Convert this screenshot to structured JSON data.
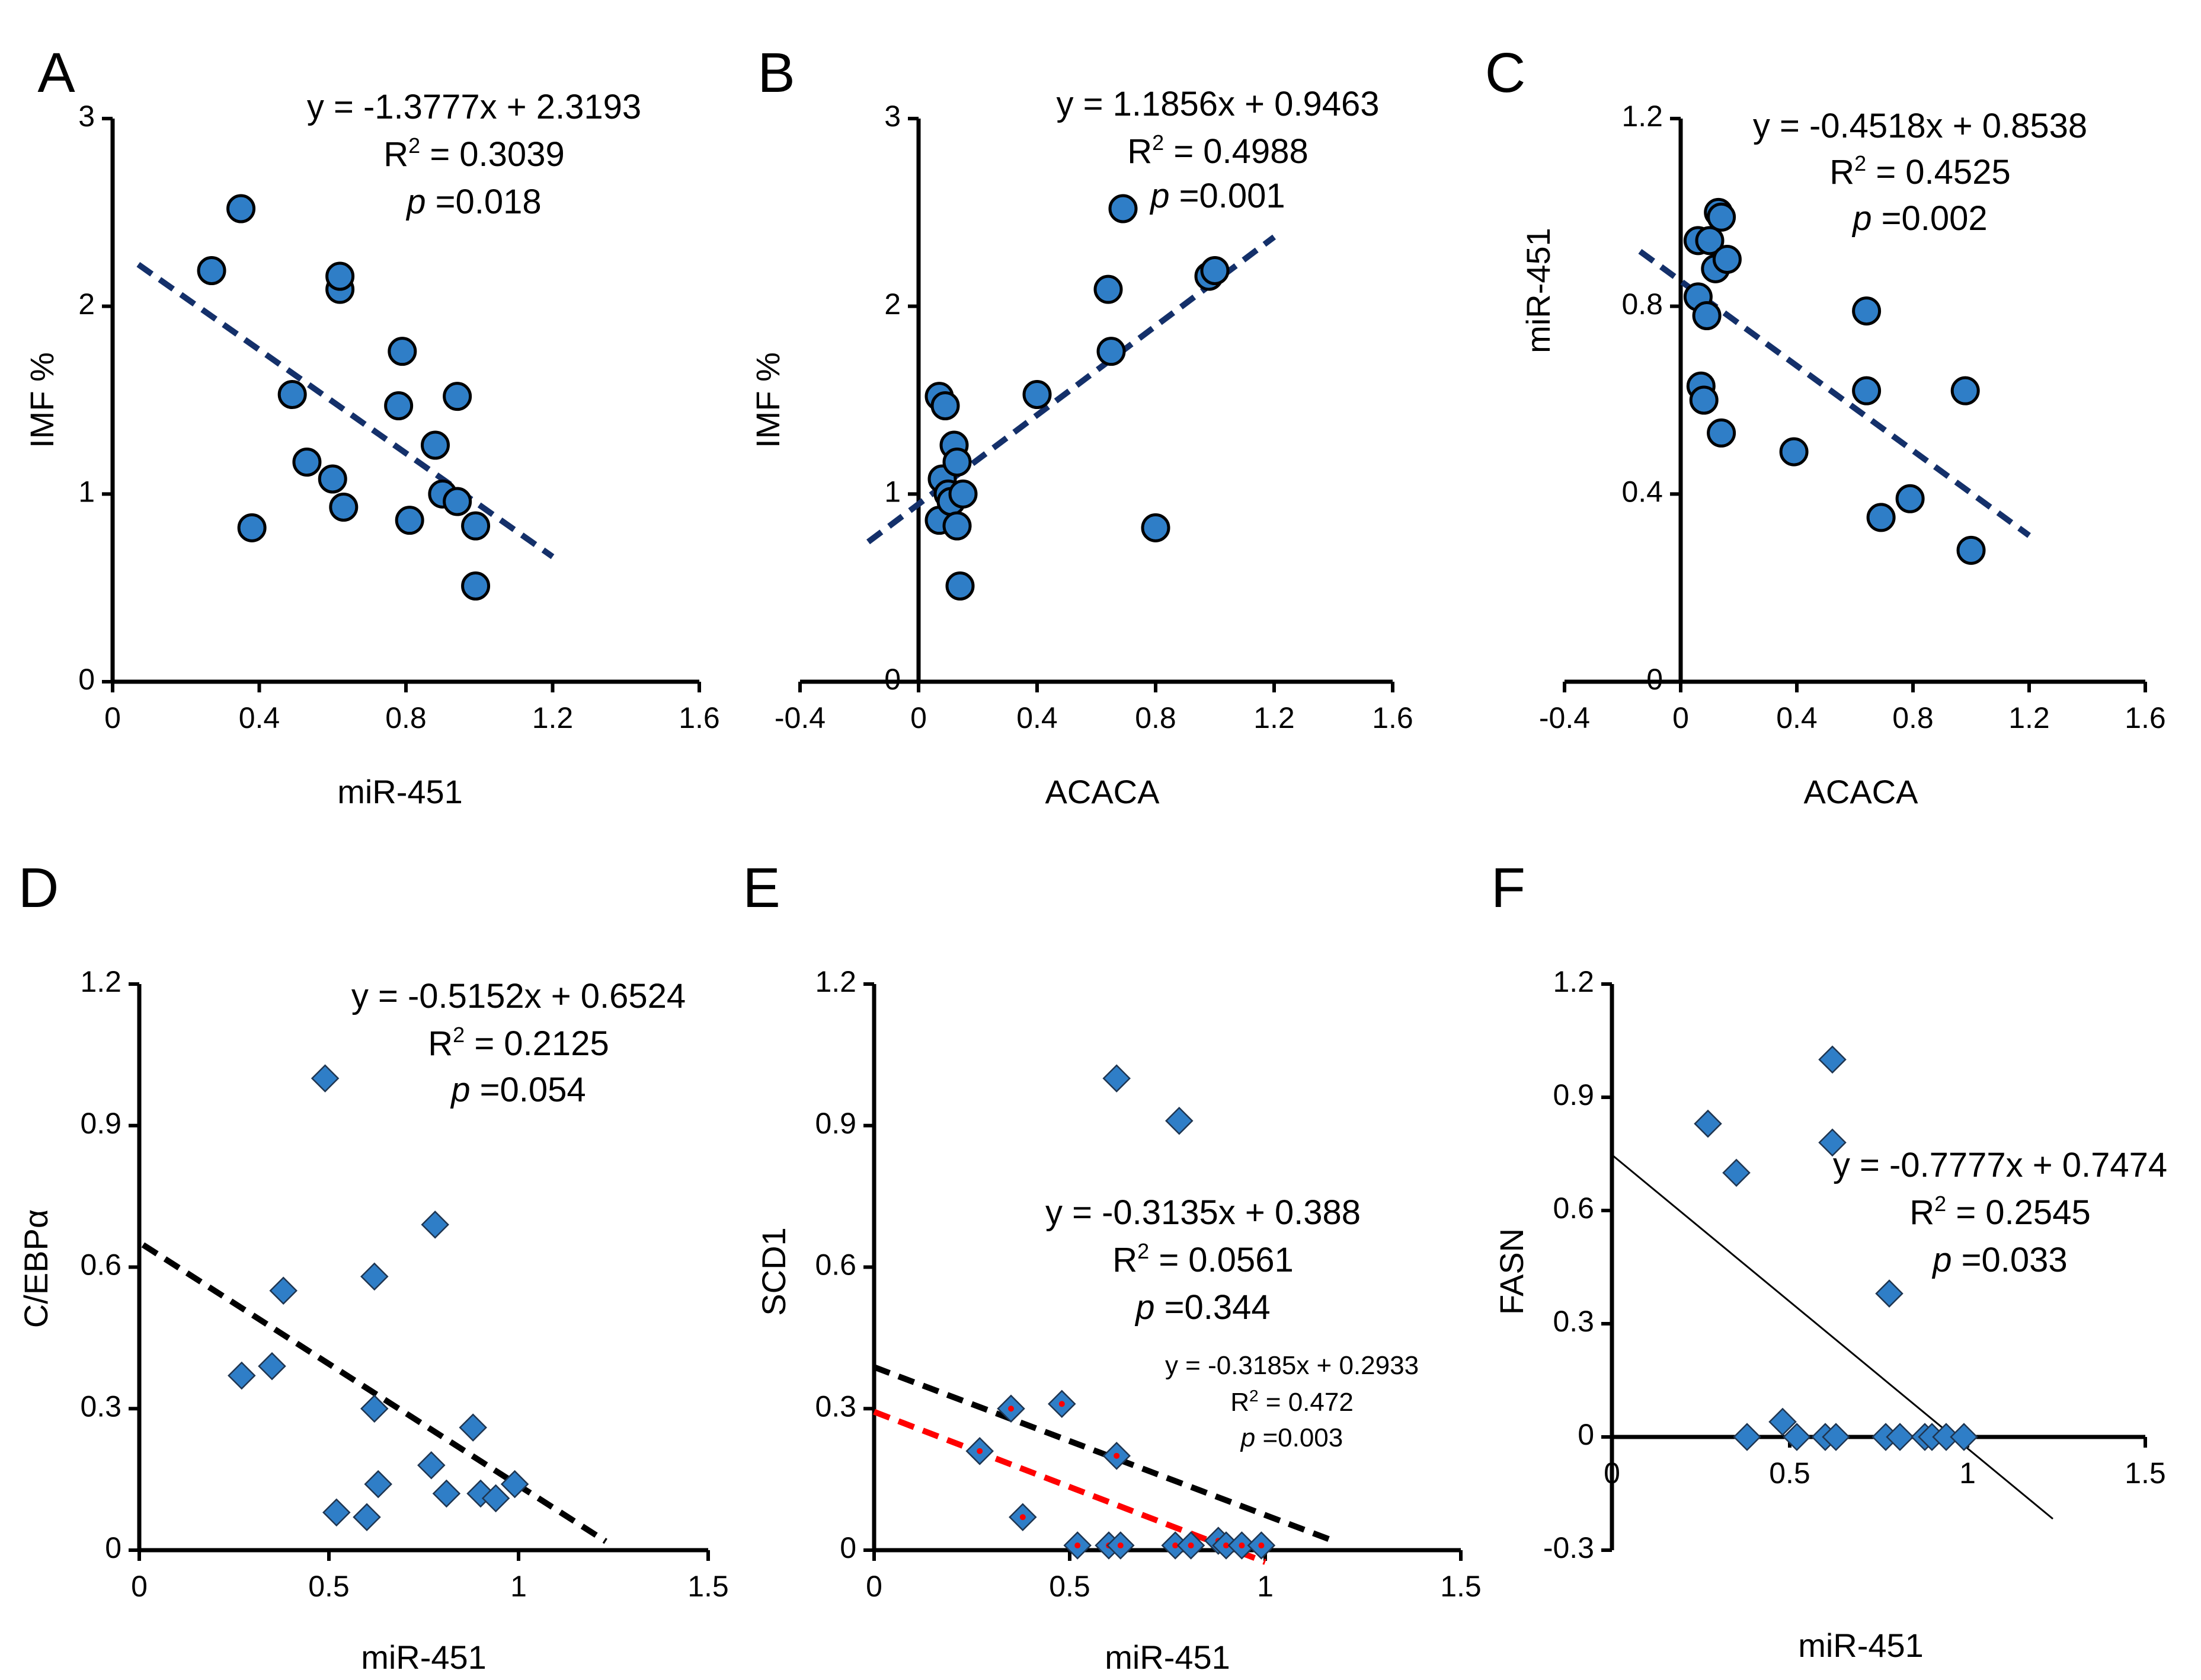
{
  "colors": {
    "marker_fill": "#2f7ec7",
    "marker_stroke": "#000000",
    "trend_navy": "#14306a",
    "trend_black": "#000000",
    "trend_red": "#ff0000",
    "point_red": "#ff0000"
  },
  "chart_data": [
    {
      "id": "A",
      "panel_label": "A",
      "type": "scatter",
      "marker": "circle",
      "xlabel": "miR-451",
      "ylabel": "IMF %",
      "xlim": [
        0,
        1.6
      ],
      "ylim": [
        0,
        3
      ],
      "xticks": [
        0,
        0.4,
        0.8,
        1.2,
        1.6
      ],
      "xtick_labels": [
        "0",
        "0.4",
        "0.8",
        "1.2",
        "1.6"
      ],
      "yticks": [
        0,
        1,
        2,
        3
      ],
      "ytick_labels": [
        "0",
        "1",
        "2",
        "3"
      ],
      "points": [
        [
          0.27,
          2.19
        ],
        [
          0.35,
          2.52
        ],
        [
          0.38,
          0.82
        ],
        [
          0.49,
          1.53
        ],
        [
          0.53,
          1.17
        ],
        [
          0.6,
          1.08
        ],
        [
          0.62,
          2.09
        ],
        [
          0.62,
          2.16
        ],
        [
          0.63,
          0.93
        ],
        [
          0.78,
          1.47
        ],
        [
          0.79,
          1.76
        ],
        [
          0.81,
          0.86
        ],
        [
          0.88,
          1.26
        ],
        [
          0.9,
          1.0
        ],
        [
          0.94,
          0.96
        ],
        [
          0.94,
          1.52
        ],
        [
          0.99,
          0.83
        ],
        [
          0.99,
          0.51
        ]
      ],
      "trendlines": [
        {
          "slope": -1.3777,
          "intercept": 2.3193,
          "x_range": [
            0.07,
            1.2
          ],
          "color": "#14306a",
          "style": "dashed",
          "equation": "y = -1.3777x + 2.3193",
          "r2_prefix": "R",
          "r2_sup": "2",
          "r2_rest": " = 0.3039",
          "p_label": "p",
          "p_value": " =0.018"
        }
      ]
    },
    {
      "id": "B",
      "panel_label": "B",
      "type": "scatter",
      "marker": "circle",
      "xlabel": "ACACA",
      "ylabel": "IMF %",
      "xlim": [
        -0.4,
        1.6
      ],
      "ylim": [
        0,
        3
      ],
      "xticks": [
        -0.4,
        0,
        0.4,
        0.8,
        1.2,
        1.6
      ],
      "xtick_labels": [
        "-0.4",
        "0",
        "0.4",
        "0.8",
        "1.2",
        "1.6"
      ],
      "yticks": [
        0,
        1,
        2,
        3
      ],
      "ytick_labels": [
        "0",
        "1",
        "2",
        "3"
      ],
      "points": [
        [
          0.07,
          1.52
        ],
        [
          0.09,
          1.47
        ],
        [
          0.08,
          1.08
        ],
        [
          0.07,
          0.86
        ],
        [
          0.1,
          1.0
        ],
        [
          0.11,
          0.96
        ],
        [
          0.12,
          1.26
        ],
        [
          0.13,
          0.83
        ],
        [
          0.13,
          1.17
        ],
        [
          0.14,
          0.51
        ],
        [
          0.15,
          1.0
        ],
        [
          0.4,
          1.53
        ],
        [
          0.64,
          2.09
        ],
        [
          0.65,
          1.76
        ],
        [
          0.69,
          2.52
        ],
        [
          0.8,
          0.82
        ],
        [
          0.98,
          2.16
        ],
        [
          1.0,
          2.19
        ]
      ],
      "trendlines": [
        {
          "slope": 1.1856,
          "intercept": 0.9463,
          "x_range": [
            -0.17,
            1.2
          ],
          "color": "#14306a",
          "style": "dashed",
          "equation": "y = 1.1856x + 0.9463",
          "r2_prefix": "R",
          "r2_sup": "2",
          "r2_rest": " = 0.4988",
          "p_label": "p",
          "p_value": " =0.001"
        }
      ]
    },
    {
      "id": "C",
      "panel_label": "C",
      "type": "scatter",
      "marker": "circle",
      "xlabel": "ACACA",
      "ylabel": "miR-451",
      "xlim": [
        -0.4,
        1.6
      ],
      "ylim": [
        0,
        1.2
      ],
      "xticks": [
        -0.4,
        0,
        0.4,
        0.8,
        1.2,
        1.6
      ],
      "xtick_labels": [
        "-0.4",
        "0",
        "0.4",
        "0.8",
        "1.2",
        "1.6"
      ],
      "yticks": [
        0,
        0.4,
        0.8,
        1.2
      ],
      "ytick_labels": [
        "0",
        "0.4",
        "0.8",
        "1.2"
      ],
      "points": [
        [
          0.06,
          0.94
        ],
        [
          0.06,
          0.82
        ],
        [
          0.07,
          0.63
        ],
        [
          0.08,
          0.6
        ],
        [
          0.09,
          0.78
        ],
        [
          0.1,
          0.94
        ],
        [
          0.12,
          0.88
        ],
        [
          0.13,
          1.0
        ],
        [
          0.14,
          0.99
        ],
        [
          0.14,
          0.53
        ],
        [
          0.16,
          0.9
        ],
        [
          0.39,
          0.49
        ],
        [
          0.64,
          0.79
        ],
        [
          0.64,
          0.62
        ],
        [
          0.69,
          0.35
        ],
        [
          0.79,
          0.39
        ],
        [
          0.98,
          0.62
        ],
        [
          1.0,
          0.28
        ]
      ],
      "trendlines": [
        {
          "slope": -0.4518,
          "intercept": 0.8538,
          "x_range": [
            -0.14,
            1.2
          ],
          "color": "#14306a",
          "style": "dashed",
          "equation": "y = -0.4518x + 0.8538",
          "r2_prefix": "R",
          "r2_sup": "2",
          "r2_rest": " = 0.4525",
          "p_label": "p",
          "p_value": " =0.002"
        }
      ]
    },
    {
      "id": "D",
      "panel_label": "D",
      "type": "scatter",
      "marker": "diamond",
      "xlabel": "miR-451",
      "ylabel": "C/EBPα",
      "xlim": [
        0,
        1.5
      ],
      "ylim": [
        0,
        1.2
      ],
      "xticks": [
        0,
        0.5,
        1,
        1.5
      ],
      "xtick_labels": [
        "0",
        "0.5",
        "1",
        "1.5"
      ],
      "yticks": [
        0,
        0.3,
        0.6,
        0.9,
        1.2
      ],
      "ytick_labels": [
        "0",
        "0.3",
        "0.6",
        "0.9",
        "1.2"
      ],
      "points": [
        [
          0.27,
          0.37
        ],
        [
          0.35,
          0.39
        ],
        [
          0.38,
          0.55
        ],
        [
          0.49,
          1.0
        ],
        [
          0.52,
          0.08
        ],
        [
          0.6,
          0.07
        ],
        [
          0.62,
          0.58
        ],
        [
          0.62,
          0.3
        ],
        [
          0.63,
          0.14
        ],
        [
          0.77,
          0.18
        ],
        [
          0.78,
          0.69
        ],
        [
          0.81,
          0.12
        ],
        [
          0.88,
          0.26
        ],
        [
          0.9,
          0.12
        ],
        [
          0.94,
          0.11
        ],
        [
          0.99,
          0.14
        ]
      ],
      "trendlines": [
        {
          "slope": -0.5152,
          "intercept": 0.6524,
          "x_range": [
            0.01,
            1.23
          ],
          "color": "#000000",
          "style": "dashed",
          "equation": "y = -0.5152x + 0.6524",
          "r2_prefix": "R",
          "r2_sup": "2",
          "r2_rest": " = 0.2125",
          "p_label": "p",
          "p_value": " =0.054"
        }
      ]
    },
    {
      "id": "E",
      "panel_label": "E",
      "type": "scatter",
      "marker": "diamond",
      "xlabel": "miR-451",
      "ylabel": "SCD1",
      "xlim": [
        0,
        1.5
      ],
      "ylim": [
        0,
        1.2
      ],
      "xticks": [
        0,
        0.5,
        1,
        1.5
      ],
      "xtick_labels": [
        "0",
        "0.5",
        "1",
        "1.5"
      ],
      "yticks": [
        0,
        0.3,
        0.6,
        0.9,
        1.2
      ],
      "ytick_labels": [
        "0",
        "0.3",
        "0.6",
        "0.9",
        "1.2"
      ],
      "points": [
        [
          0.62,
          1.0
        ],
        [
          0.78,
          0.91
        ],
        [
          0.27,
          0.21
        ],
        [
          0.35,
          0.3
        ],
        [
          0.38,
          0.07
        ],
        [
          0.48,
          0.31
        ],
        [
          0.52,
          0.01
        ],
        [
          0.6,
          0.01
        ],
        [
          0.62,
          0.2
        ],
        [
          0.63,
          0.01
        ],
        [
          0.77,
          0.01
        ],
        [
          0.81,
          0.01
        ],
        [
          0.88,
          0.02
        ],
        [
          0.9,
          0.01
        ],
        [
          0.94,
          0.01
        ],
        [
          0.99,
          0.01
        ]
      ],
      "red_dot_indices": [
        2,
        3,
        4,
        5,
        6,
        7,
        8,
        9,
        10,
        11,
        12,
        13,
        14,
        15
      ],
      "trendlines": [
        {
          "slope": -0.3135,
          "intercept": 0.388,
          "x_range": [
            0.0,
            1.17
          ],
          "color": "#000000",
          "style": "dashed",
          "equation": "y = -0.3135x + 0.388",
          "r2_prefix": "R",
          "r2_sup": "2",
          "r2_rest": " = 0.0561",
          "p_label": "p",
          "p_value": " =0.344"
        },
        {
          "slope": -0.3185,
          "intercept": 0.2933,
          "x_range": [
            0.0,
            1.0
          ],
          "color": "#ff0000",
          "style": "dashed",
          "equation": "y = -0.3185x + 0.2933",
          "r2_prefix": "R",
          "r2_sup": "2",
          "r2_rest": " = 0.472",
          "p_label": "p",
          "p_value": " =0.003"
        }
      ]
    },
    {
      "id": "F",
      "panel_label": "F",
      "type": "scatter",
      "marker": "diamond",
      "xlabel": "miR-451",
      "ylabel": "FASN",
      "xlim": [
        0,
        1.5
      ],
      "ylim": [
        -0.3,
        1.2
      ],
      "xticks": [
        0,
        0.5,
        1,
        1.5
      ],
      "xtick_labels": [
        "0",
        "0.5",
        "1",
        "1.5"
      ],
      "yticks": [
        -0.3,
        0,
        0.3,
        0.6,
        0.9,
        1.2
      ],
      "ytick_labels": [
        "-0.3",
        "0",
        "0.3",
        "0.6",
        "0.9",
        "1.2"
      ],
      "points": [
        [
          0.27,
          0.83
        ],
        [
          0.35,
          0.7
        ],
        [
          0.38,
          0.0
        ],
        [
          0.48,
          0.04
        ],
        [
          0.52,
          0.0
        ],
        [
          0.6,
          0.0
        ],
        [
          0.62,
          1.0
        ],
        [
          0.62,
          0.78
        ],
        [
          0.63,
          0.0
        ],
        [
          0.77,
          0.0
        ],
        [
          0.78,
          0.38
        ],
        [
          0.81,
          0.0
        ],
        [
          0.88,
          0.0
        ],
        [
          0.9,
          0.0
        ],
        [
          0.94,
          0.0
        ],
        [
          0.99,
          0.0
        ]
      ],
      "trendlines": [
        {
          "slope": -0.7777,
          "intercept": 0.7474,
          "x_range": [
            0.0,
            1.24
          ],
          "color": "#000000",
          "style": "solid",
          "equation": "y = -0.7777x + 0.7474",
          "r2_prefix": "R",
          "r2_sup": "2",
          "r2_rest": " = 0.2545",
          "p_label": "p",
          "p_value": " =0.033"
        }
      ]
    }
  ]
}
